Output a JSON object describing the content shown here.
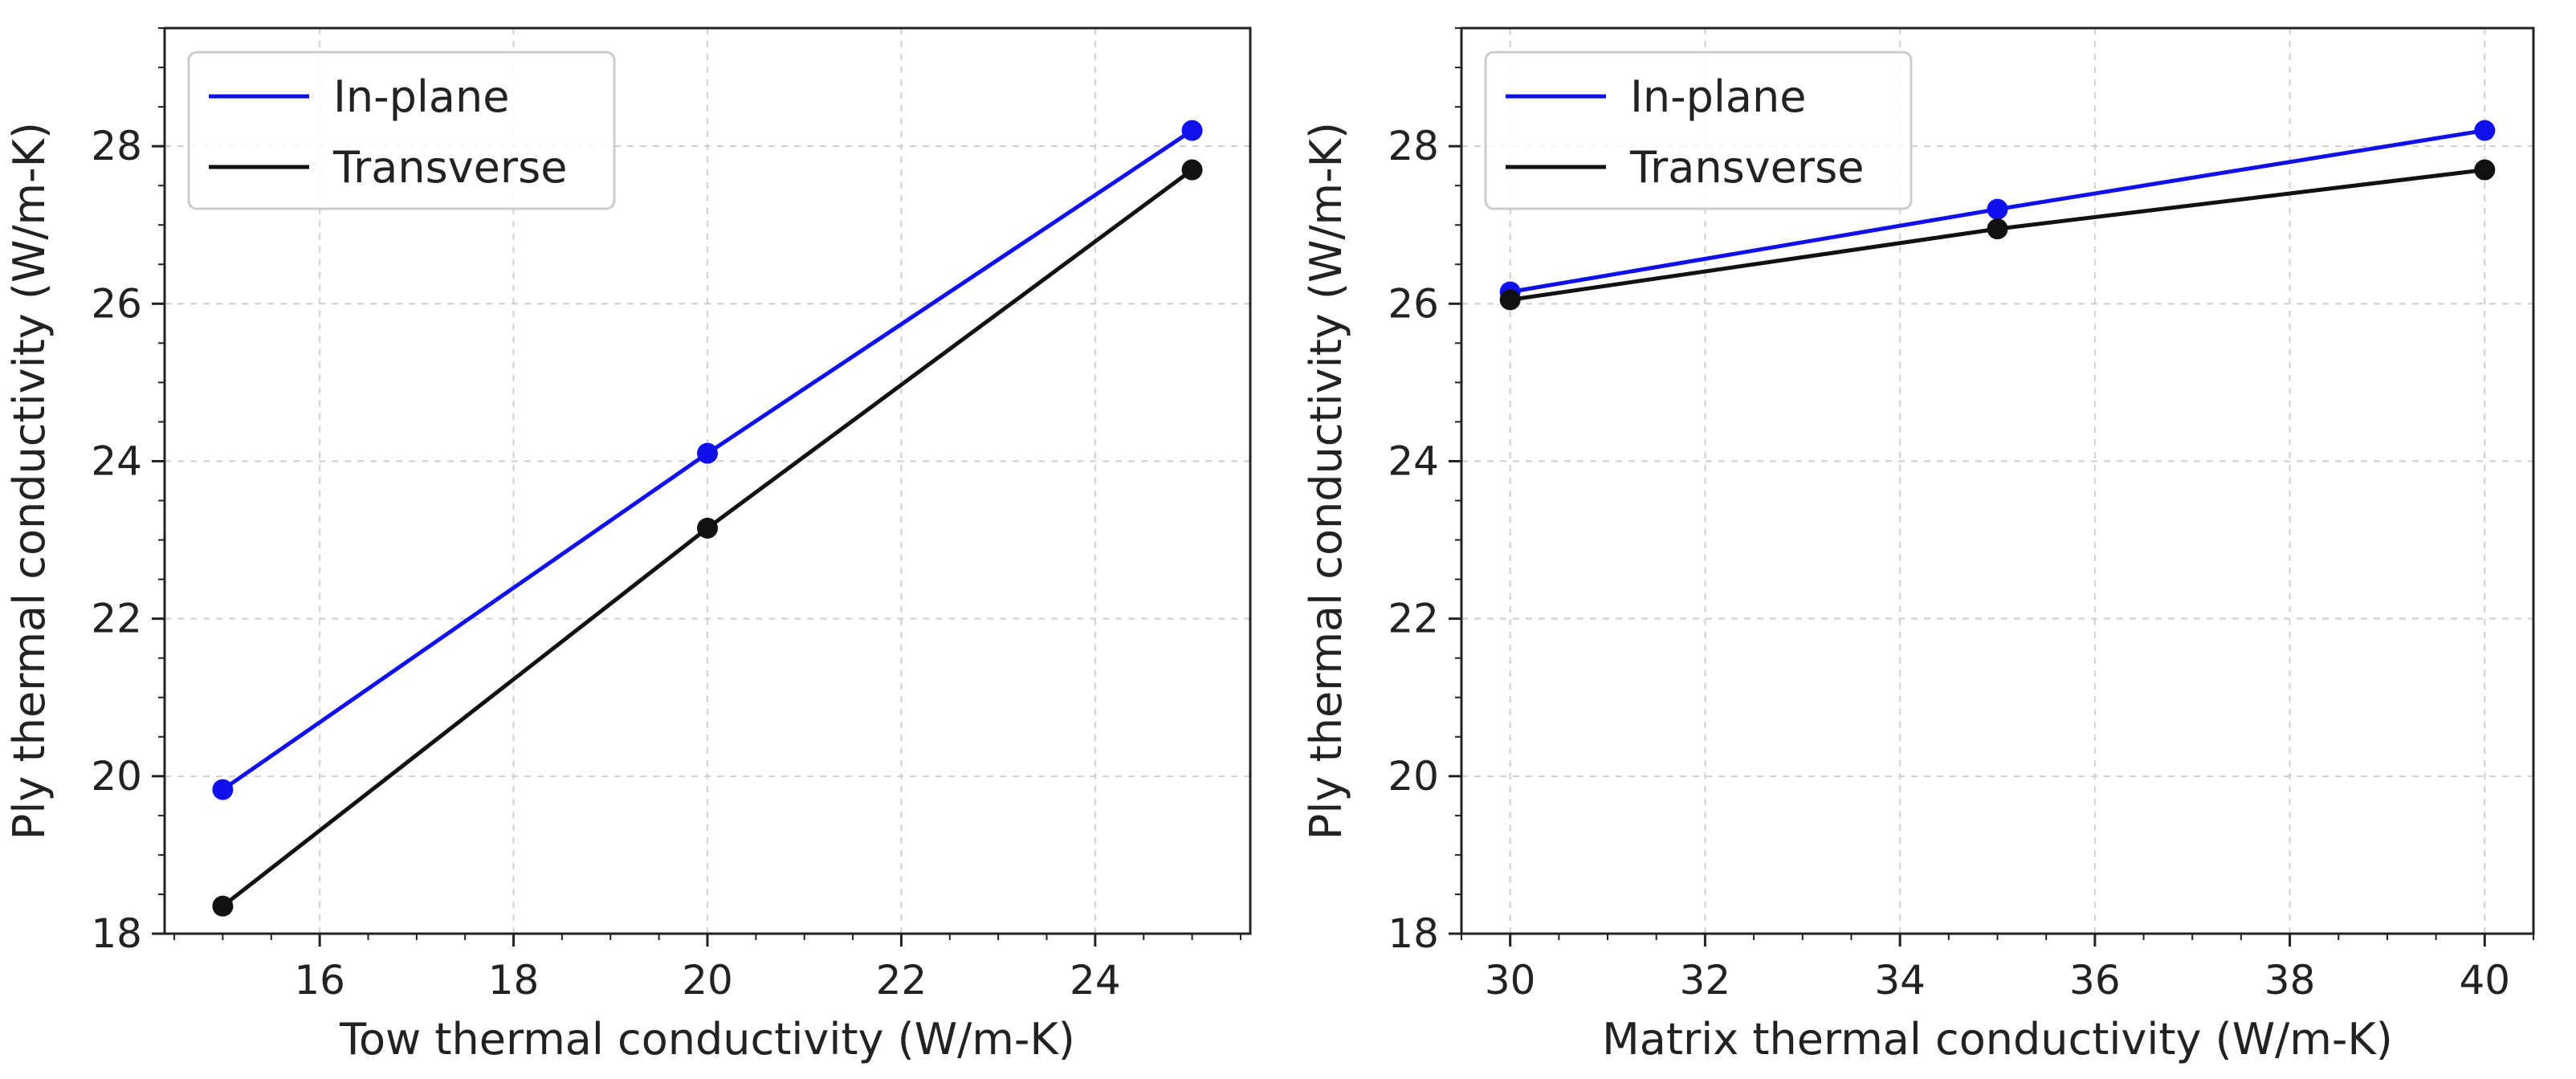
{
  "chart_data": [
    {
      "type": "line",
      "xlabel": "Tow thermal conductivity (W/m-K)",
      "ylabel": "Ply thermal conductivity (W/m-K)",
      "xlim": [
        14.4,
        25.6
      ],
      "ylim": [
        18,
        29.5
      ],
      "xticks": [
        16,
        18,
        20,
        22,
        24
      ],
      "yticks": [
        18,
        20,
        22,
        24,
        26,
        28
      ],
      "grid": true,
      "legend_position": "top-left",
      "series": [
        {
          "name": "In-plane",
          "color": "#1010ee",
          "x": [
            15,
            20,
            25
          ],
          "y": [
            19.83,
            24.1,
            28.2
          ]
        },
        {
          "name": "Transverse",
          "color": "#111111",
          "x": [
            15,
            20,
            25
          ],
          "y": [
            18.35,
            23.15,
            27.7
          ]
        }
      ]
    },
    {
      "type": "line",
      "xlabel": "Matrix thermal conductivity (W/m-K)",
      "ylabel": "Ply thermal conductivity (W/m-K)",
      "xlim": [
        29.5,
        40.5
      ],
      "ylim": [
        18,
        29.5
      ],
      "xticks": [
        30,
        32,
        34,
        36,
        38,
        40
      ],
      "yticks": [
        18,
        20,
        22,
        24,
        26,
        28
      ],
      "grid": true,
      "legend_position": "top-left",
      "series": [
        {
          "name": "In-plane",
          "color": "#1010ee",
          "x": [
            30,
            35,
            40
          ],
          "y": [
            26.15,
            27.2,
            28.2
          ]
        },
        {
          "name": "Transverse",
          "color": "#111111",
          "x": [
            30,
            35,
            40
          ],
          "y": [
            26.05,
            26.95,
            27.7
          ]
        }
      ]
    }
  ]
}
